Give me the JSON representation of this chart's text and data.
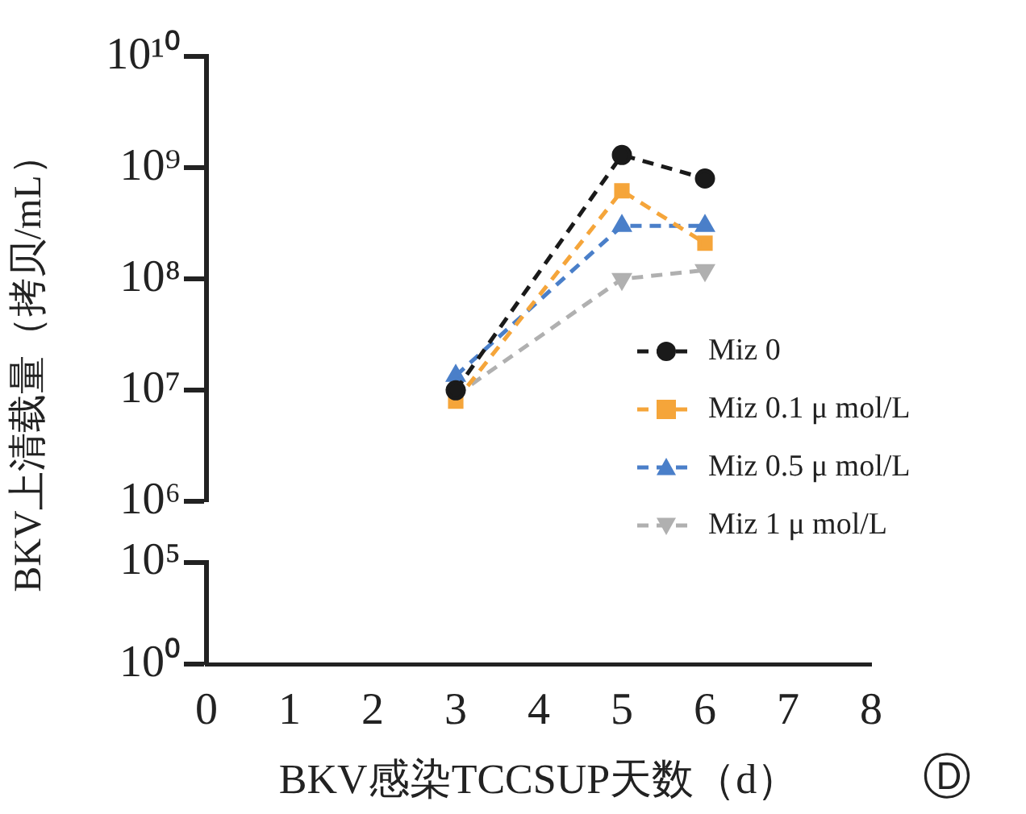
{
  "chart_data": [
    {
      "type": "line",
      "ylabel": "BKV上清载量（拷贝/mL）",
      "x": [
        3,
        5,
        6
      ],
      "xlim": [
        0,
        8
      ],
      "log": true,
      "ylim": [
        1000000,
        10000000000
      ],
      "yticks": [
        {
          "value": 1000000,
          "label": "10⁶"
        },
        {
          "value": 10000000,
          "label": "10⁷"
        },
        {
          "value": 100000000,
          "label": "10⁸"
        },
        {
          "value": 1000000000,
          "label": "10⁹"
        },
        {
          "value": 10000000000,
          "label": "10¹⁰"
        }
      ],
      "tick_labels": "y",
      "grid": false,
      "legend": "bottom right",
      "line_style": "dashed",
      "series": [
        {
          "name": "Miz 0",
          "color": "#1a1a1a",
          "marker": "circle",
          "values": [
            10000000,
            1300000000,
            800000000
          ]
        },
        {
          "name": "Miz 0.1 μ mol/L",
          "color": "#f5a53a",
          "marker": "square",
          "values": [
            8000000,
            620000000,
            210000000
          ]
        },
        {
          "name": "Miz 0.5 μ mol/L",
          "color": "#4a7fc9",
          "marker": "triangle",
          "values": [
            13500000,
            300000000,
            300000000
          ]
        },
        {
          "name": "Miz 1 μ mol/L",
          "color": "#b0b0b0",
          "marker": "triangle-down",
          "values": [
            9000000,
            100000000,
            120000000
          ]
        }
      ]
    },
    {
      "type": "line",
      "xlabel": "BKV感染TCCSUP天数（d）",
      "xlim": [
        0,
        8
      ],
      "xticks": [
        0,
        1,
        2,
        3,
        4,
        5,
        6,
        7,
        8
      ],
      "log": true,
      "ylim": [
        1,
        100000
      ],
      "yticks": [
        {
          "value": 1,
          "label": "10⁰"
        },
        {
          "value": 100000,
          "label": "10⁵"
        }
      ],
      "grid": false,
      "annotations": [
        "Ⓓ"
      ]
    }
  ]
}
